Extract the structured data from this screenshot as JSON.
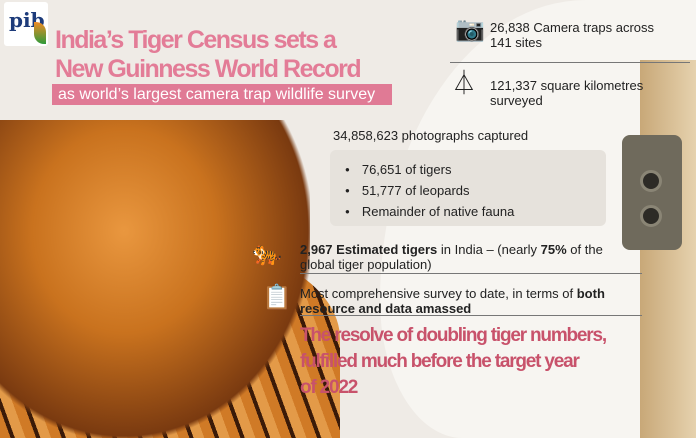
{
  "logo": {
    "text": "pib"
  },
  "title": {
    "line1": "India’s Tiger Census sets a",
    "line2": "New Guinness World Record",
    "subtitle": "as world’s largest camera trap wildlife survey"
  },
  "stats": {
    "camera_traps": {
      "icon": "camera-trap-icon",
      "line1": "26,838 Camera traps  across",
      "line2": "141 sites"
    },
    "area": {
      "icon": "tripod-icon",
      "line1": "121,337 square kilometres",
      "line2": "surveyed"
    },
    "photos": {
      "heading": "34,858,623 photographs captured",
      "items": [
        "76,651 of tigers",
        "51,777 of leopards",
        "Remainder of native fauna"
      ]
    },
    "tigers": {
      "icon": "tiger-icon",
      "bold1": "2,967 Estimated tigers",
      "text1": " in India – (nearly ",
      "bold2": "75%",
      "text2": " of the",
      "line2": "global tiger population)"
    },
    "survey": {
      "icon": "clipboard-checklist-icon",
      "text1": "Most comprehensive survey to date, in terms of ",
      "bold1": "both",
      "line2": "resource and data amassed"
    }
  },
  "footer": {
    "line1": "The resolve of doubling tiger numbers,",
    "line2": "fulfilled much before the target year",
    "line3": "of 2022"
  },
  "colors": {
    "title": "#e37c97",
    "footer": "#c8526b",
    "background": "#efebe6"
  }
}
